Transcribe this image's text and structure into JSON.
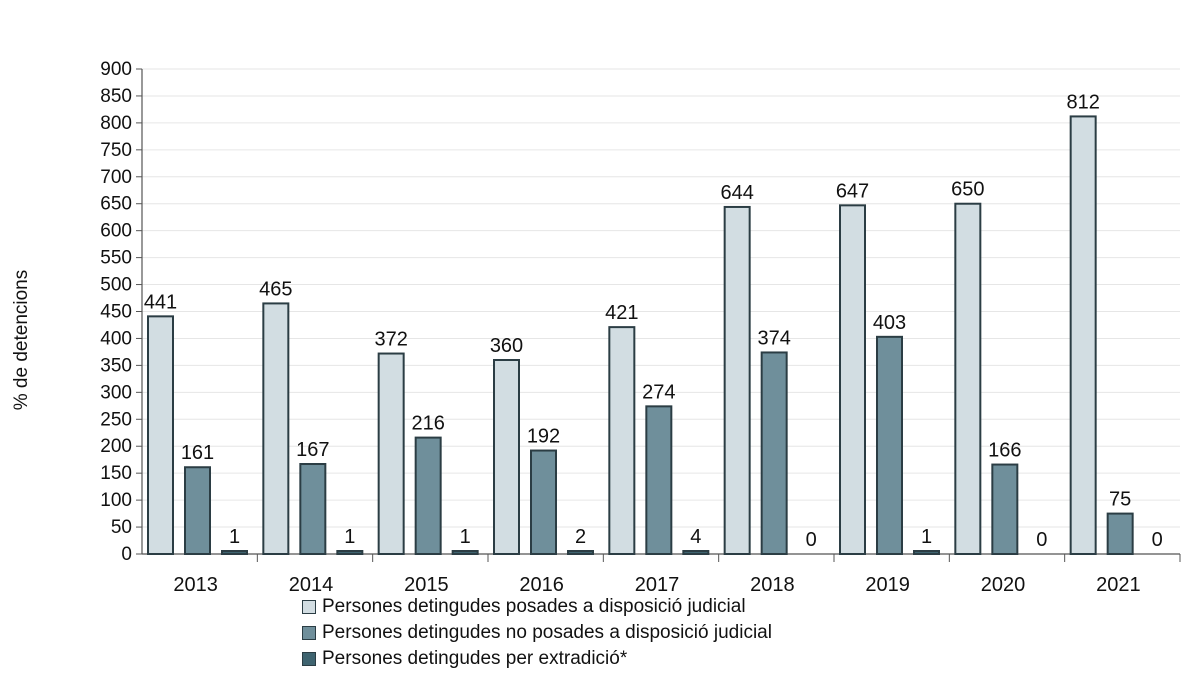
{
  "chart_data": {
    "type": "bar",
    "title": "",
    "xlabel": "",
    "ylabel": "% de detencions",
    "ylim": [
      0,
      900
    ],
    "ytick_step": 50,
    "grid": true,
    "legend_position": "bottom-center",
    "categories": [
      "2013",
      "2014",
      "2015",
      "2016",
      "2017",
      "2018",
      "2019",
      "2020",
      "2021"
    ],
    "series": [
      {
        "name": "Persones detingudes posades a disposició judicial",
        "color": "#d2dde2",
        "values": [
          441,
          465,
          372,
          360,
          421,
          644,
          647,
          650,
          812
        ]
      },
      {
        "name": "Persones detingudes no posades a disposició judicial",
        "color": "#6f8f9b",
        "values": [
          161,
          167,
          216,
          192,
          274,
          374,
          403,
          166,
          75
        ]
      },
      {
        "name": "Persones detingudes per extradició*",
        "color": "#3f6470",
        "values": [
          1,
          1,
          1,
          2,
          4,
          0,
          1,
          0,
          0
        ]
      }
    ]
  }
}
